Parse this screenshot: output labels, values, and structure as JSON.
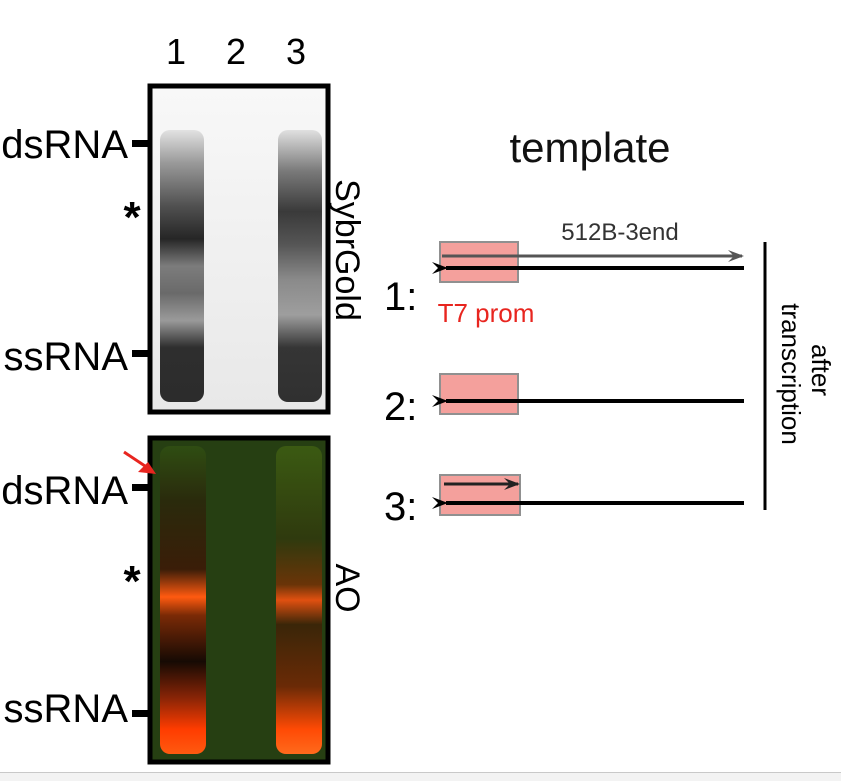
{
  "gel": {
    "lanes": [
      "1",
      "2",
      "3"
    ],
    "top_panel": {
      "stain": "SybrGold",
      "markers": [
        "dsRNA",
        "*",
        "ssRNA"
      ]
    },
    "bottom_panel": {
      "stain": "AO",
      "markers": [
        "dsRNA",
        "*",
        "ssRNA"
      ]
    },
    "arrow_color": "#e8251f"
  },
  "schematic": {
    "title": "template",
    "rows": [
      {
        "label": "1:",
        "top_strand": "512B-3end",
        "promoter": "T7 prom"
      },
      {
        "label": "2:"
      },
      {
        "label": "3:"
      }
    ],
    "side_label_top": "after",
    "side_label_bottom": "transcription",
    "promoter_fill": "#f4a09c",
    "strand_color": "#000000",
    "transcript_color": "#555555"
  }
}
